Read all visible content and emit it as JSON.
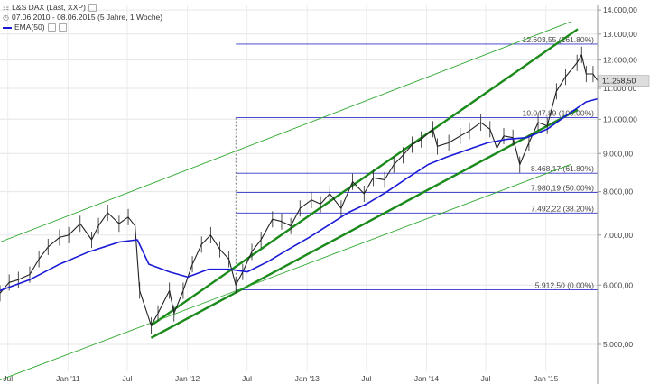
{
  "legend": {
    "instrument": "L&S DAX (Last, XXP)",
    "period": "07.06.2010 - 08.06.2015 (5 Jahre, 1 Woche)",
    "indicator": "EMA(50)",
    "indicator_color": "#1a1ad6"
  },
  "colors": {
    "price": "#222222",
    "ema": "#1a1ad6",
    "fib_line": "#3333cc",
    "channel": "#1a8a1a",
    "channel_thin": "#33aa33",
    "current_price_bg": "#dddddd"
  },
  "chart_data": {
    "type": "line",
    "title": "L&S DAX (Last, XXP)",
    "subtitle": "07.06.2010 - 08.06.2015 (5 Jahre, 1 Woche)",
    "y_scale": "log",
    "ylim": [
      4600,
      14200
    ],
    "xlim": [
      "2010-06-07",
      "2015-06-08"
    ],
    "y_ticks": [
      5000,
      6000,
      7000,
      8000,
      9000,
      10000,
      11000,
      12000,
      13000,
      14000
    ],
    "y_tick_labels": [
      "5.000,00",
      "6.000,00",
      "7.000,00",
      "8.000,00",
      "9.000,00",
      "10.000,00",
      "11.000,00",
      "12.000,00",
      "13.000,00",
      "14.000,00"
    ],
    "x_ticks": [
      "2010-07-01",
      "2011-01-01",
      "2011-07-01",
      "2012-01-01",
      "2012-07-01",
      "2013-01-01",
      "2013-07-01",
      "2014-01-01",
      "2014-07-01",
      "2015-01-01"
    ],
    "x_tick_labels": [
      "Jul",
      "Jan '11",
      "Jul",
      "Jan '12",
      "Jul",
      "Jan '13",
      "Jul",
      "Jan '14",
      "Jul",
      "Jan '15"
    ],
    "current_price": 11258.5,
    "current_price_label": "11.258,50",
    "series": [
      {
        "name": "L&S DAX (Last, XXP)",
        "x": [
          "2010-06-07",
          "2010-07-05",
          "2010-08-02",
          "2010-09-06",
          "2010-10-04",
          "2010-11-01",
          "2010-12-06",
          "2011-01-03",
          "2011-02-07",
          "2011-03-14",
          "2011-04-04",
          "2011-05-02",
          "2011-06-06",
          "2011-07-04",
          "2011-07-25",
          "2011-08-08",
          "2011-09-12",
          "2011-10-03",
          "2011-11-07",
          "2011-11-21",
          "2011-12-19",
          "2012-01-16",
          "2012-02-13",
          "2012-03-12",
          "2012-04-09",
          "2012-05-07",
          "2012-05-28",
          "2012-06-18",
          "2012-07-16",
          "2012-08-13",
          "2012-09-17",
          "2012-10-15",
          "2012-11-12",
          "2012-12-10",
          "2013-01-14",
          "2013-02-11",
          "2013-03-11",
          "2013-04-15",
          "2013-05-20",
          "2013-06-24",
          "2013-07-22",
          "2013-08-26",
          "2013-09-23",
          "2013-10-21",
          "2013-11-18",
          "2013-12-16",
          "2014-01-20",
          "2014-02-03",
          "2014-03-10",
          "2014-04-14",
          "2014-05-12",
          "2014-06-16",
          "2014-07-14",
          "2014-08-04",
          "2014-08-25",
          "2014-09-22",
          "2014-10-13",
          "2014-11-10",
          "2014-12-08",
          "2015-01-05",
          "2015-02-02",
          "2015-03-02",
          "2015-04-06",
          "2015-04-20",
          "2015-05-04",
          "2015-05-25",
          "2015-06-08"
        ],
        "values": [
          5850,
          6050,
          6100,
          6200,
          6500,
          6750,
          6950,
          7000,
          7250,
          6900,
          7200,
          7500,
          7250,
          7400,
          7200,
          5900,
          5300,
          5500,
          5900,
          5500,
          5900,
          6400,
          6800,
          7000,
          6700,
          6500,
          6000,
          6250,
          6650,
          6900,
          7350,
          7300,
          7200,
          7600,
          7800,
          7700,
          7950,
          7600,
          8250,
          7950,
          8350,
          8300,
          8700,
          8950,
          9250,
          9400,
          9700,
          9200,
          9300,
          9500,
          9650,
          9900,
          9700,
          9150,
          9500,
          9450,
          8700,
          9300,
          9900,
          9800,
          10900,
          11400,
          11900,
          12200,
          11500,
          11500,
          11258.5
        ]
      },
      {
        "name": "EMA(50)",
        "x": [
          "2010-06-07",
          "2010-09-06",
          "2010-12-06",
          "2011-03-07",
          "2011-06-06",
          "2011-08-01",
          "2011-09-05",
          "2011-11-07",
          "2012-01-02",
          "2012-03-05",
          "2012-05-07",
          "2012-07-02",
          "2012-09-03",
          "2012-11-05",
          "2013-01-07",
          "2013-03-04",
          "2013-05-06",
          "2013-07-01",
          "2013-09-02",
          "2013-11-04",
          "2014-01-06",
          "2014-03-03",
          "2014-05-05",
          "2014-07-07",
          "2014-09-01",
          "2014-11-03",
          "2015-01-05",
          "2015-03-02",
          "2015-05-04",
          "2015-06-08"
        ],
        "values": [
          5900,
          6100,
          6400,
          6650,
          6850,
          6900,
          6400,
          6250,
          6150,
          6300,
          6300,
          6250,
          6450,
          6700,
          6950,
          7200,
          7500,
          7700,
          8000,
          8350,
          8700,
          8900,
          9100,
          9300,
          9400,
          9450,
          9700,
          10100,
          10550,
          10650
        ]
      }
    ],
    "fibonacci_levels": [
      {
        "value": 12603.55,
        "label": "12.603,55 (161.80%)"
      },
      {
        "value": 10047.89,
        "label": "10.047,89 (100.00%)"
      },
      {
        "value": 8468.17,
        "label": "8.468,17 (61.80%)"
      },
      {
        "value": 7980.19,
        "label": "7.980,19 (50.00%)"
      },
      {
        "value": 7492.22,
        "label": "7.492,22 (38.20%)"
      },
      {
        "value": 5912.5,
        "label": "5.912,50 (0.00%)"
      }
    ],
    "trend_channel": [
      {
        "role": "upper",
        "from": [
          "2011-09-12",
          5300
        ],
        "to": [
          "2015-06-08",
          13200
        ]
      },
      {
        "role": "lower",
        "from": [
          "2011-09-12",
          5100
        ],
        "to": [
          "2015-06-08",
          10300
        ]
      },
      {
        "role": "outer-upper",
        "from": [
          "2010-06-07",
          6850
        ],
        "to": [
          "2015-06-08",
          13500
        ]
      },
      {
        "role": "outer-lower",
        "from": [
          "2010-06-07",
          4480
        ],
        "to": [
          "2015-06-08",
          8700
        ]
      }
    ]
  }
}
